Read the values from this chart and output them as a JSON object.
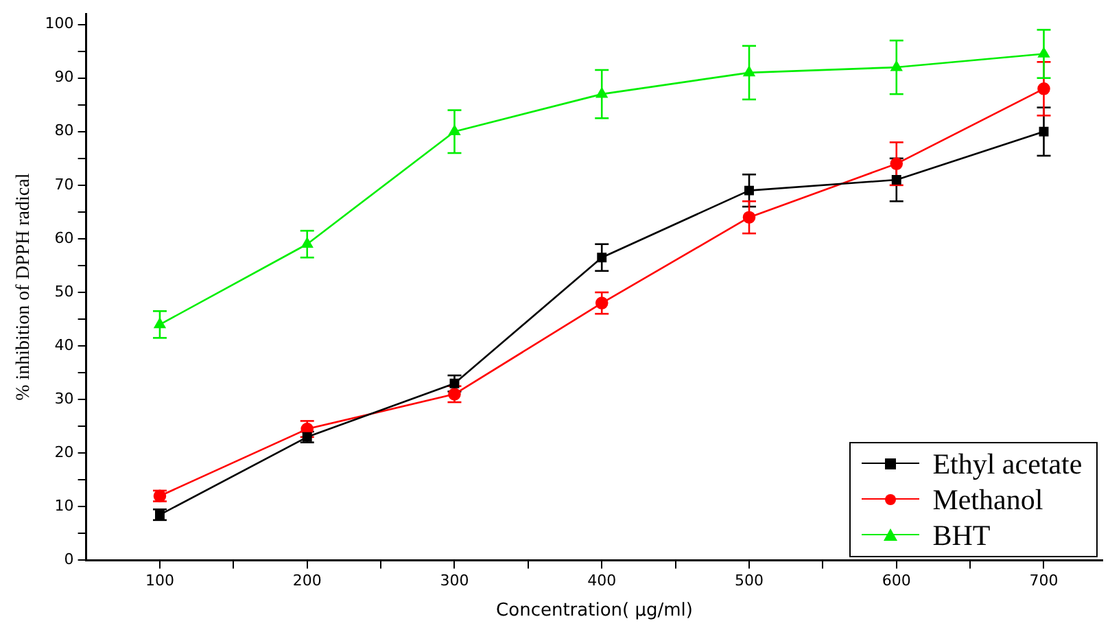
{
  "chart_data": {
    "type": "line",
    "xlabel": "Concentration( µg/ml)",
    "ylabel": "% inhibition of DPPH radical",
    "x": [
      100,
      200,
      300,
      400,
      500,
      600,
      700
    ],
    "series": [
      {
        "name": "Ethyl acetate",
        "color": "#000000",
        "marker": "square",
        "values": [
          8.5,
          23,
          33,
          56.5,
          69,
          71,
          80
        ],
        "errors": [
          1,
          1,
          1.5,
          2.5,
          3,
          4,
          4.5
        ]
      },
      {
        "name": "Methanol",
        "color": "#ff0000",
        "marker": "circle",
        "values": [
          12,
          24.5,
          31,
          48,
          64,
          74,
          88
        ],
        "errors": [
          1,
          1.5,
          1.5,
          2,
          3,
          4,
          5
        ]
      },
      {
        "name": "BHT",
        "color": "#00ee00",
        "marker": "triangle",
        "values": [
          44,
          59,
          80,
          87,
          91,
          92,
          94.5
        ],
        "errors": [
          2.5,
          2.5,
          4,
          4.5,
          5,
          5,
          4.5
        ]
      }
    ],
    "xlim": [
      50,
      740
    ],
    "xticks": [
      100,
      {
        "value": 150,
        "label": null
      },
      200,
      {
        "value": 250,
        "label": null
      },
      300,
      {
        "value": 350,
        "label": null
      },
      400,
      {
        "value": 450,
        "label": null
      },
      500,
      {
        "value": 550,
        "label": null
      },
      600,
      {
        "value": 650,
        "label": null
      },
      700
    ],
    "ylim": [
      0,
      102
    ],
    "yticks": [
      0,
      {
        "value": 5,
        "label": null
      },
      10,
      {
        "value": 15,
        "label": null
      },
      20,
      {
        "value": 25,
        "label": null
      },
      30,
      {
        "value": 35,
        "label": null
      },
      40,
      {
        "value": 45,
        "label": null
      },
      50,
      {
        "value": 55,
        "label": null
      },
      60,
      {
        "value": 65,
        "label": null
      },
      70,
      {
        "value": 75,
        "label": null
      },
      80,
      {
        "value": 85,
        "label": null
      },
      90,
      {
        "value": 95,
        "label": null
      },
      100
    ],
    "grid": false,
    "legend": "bottom right",
    "line_style": "solid"
  }
}
